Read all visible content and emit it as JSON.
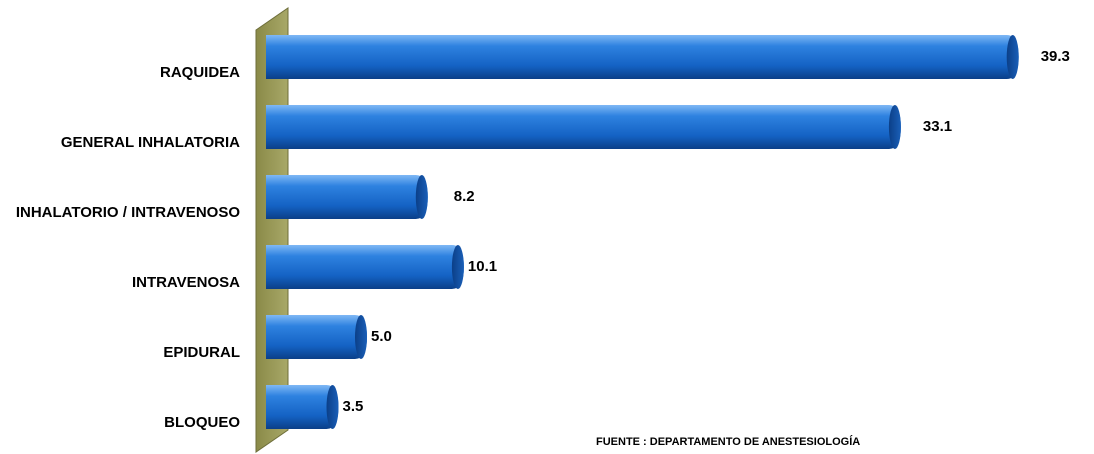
{
  "chart_data": {
    "type": "bar",
    "orientation": "horizontal",
    "categories": [
      "RAQUIDEA",
      "GENERAL INHALATORIA",
      "INHALATORIO / INTRAVENOSO",
      "INTRAVENOSA",
      "EPIDURAL",
      "BLOQUEO"
    ],
    "values": [
      39.3,
      33.1,
      8.2,
      10.1,
      5.0,
      3.5
    ],
    "value_labels": [
      "39.3",
      "33.1",
      "8.2",
      "10.1",
      "5.0",
      "3.5"
    ],
    "title": "",
    "xlabel": "",
    "ylabel": "",
    "xlim": [
      0,
      40
    ],
    "grid": false,
    "legend": "none",
    "colors": {
      "bar": "#1466c8",
      "bar_dark": "#0a3f86",
      "bar_light": "#5aa0f0",
      "wall": "#9a9a58"
    }
  },
  "source_note": "FUENTE : DEPARTAMENTO DE  ANESTESIOLOGÍA"
}
